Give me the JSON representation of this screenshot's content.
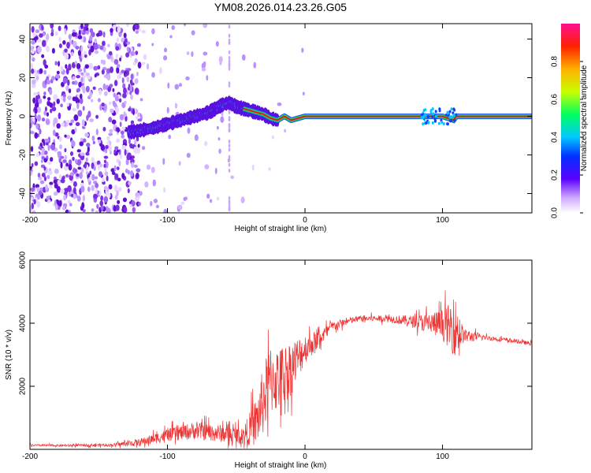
{
  "title": "YM08.2026.014.23.26.G05",
  "colors": {
    "snr_line": "#ee3333",
    "spectrum_noise": "#7b2ee0",
    "track_core": "#e02020",
    "track_edge": "#20d060"
  },
  "colorbar": {
    "label": "Normalized spectral amplitude",
    "ticks": [
      "0.0",
      "0.2",
      "0.4",
      "0.6",
      "0.8"
    ],
    "tick_values": [
      0.0,
      0.2,
      0.4,
      0.6,
      0.8
    ],
    "range": [
      0,
      1
    ]
  },
  "chart_data": [
    {
      "type": "heatmap",
      "title": "YM08.2026.014.23.26.G05",
      "xlabel": "Height of straight line (km)",
      "ylabel": "Frequency (Hz)",
      "xlim": [
        -200,
        165
      ],
      "ylim": [
        -50,
        48
      ],
      "x_ticks": [
        -200,
        -100,
        0,
        100
      ],
      "x_tick_labels": [
        "-200",
        "-100",
        "0",
        "100"
      ],
      "y_ticks": [
        -40,
        -20,
        0,
        20,
        40
      ],
      "y_tick_labels": [
        "-40",
        "-20",
        "0",
        "20",
        "40"
      ],
      "track": {
        "x": [
          -125,
          -110,
          -100,
          -90,
          -80,
          -70,
          -60,
          -55,
          -50,
          -45,
          -40,
          -35,
          -30,
          -25,
          -20,
          -15,
          -10,
          -5,
          0,
          50,
          100,
          108,
          110,
          165
        ],
        "y": [
          -8,
          -6,
          -4,
          -2,
          0,
          2,
          6,
          7,
          5,
          4,
          3,
          2,
          1,
          -1,
          -2,
          0,
          -2,
          -1,
          0,
          0,
          0,
          -2,
          0,
          0
        ]
      },
      "noise_region": {
        "x_min": -200,
        "x_max": -120
      }
    },
    {
      "type": "line",
      "title": "",
      "xlabel": "Height of straight line (km)",
      "ylabel": "SNR (10 * v/v)",
      "xlim": [
        -200,
        165
      ],
      "ylim": [
        0,
        6000
      ],
      "x_ticks": [
        -200,
        -100,
        0,
        100
      ],
      "x_tick_labels": [
        "-200",
        "-100",
        "0",
        "100"
      ],
      "y_ticks": [
        2000,
        4000,
        6000
      ],
      "y_tick_labels": [
        "2000",
        "4000",
        "6000"
      ],
      "series": [
        {
          "name": "SNR",
          "x": [
            -200,
            -180,
            -160,
            -140,
            -120,
            -100,
            -80,
            -60,
            -45,
            -35,
            -30,
            -25,
            -20,
            -10,
            0,
            10,
            20,
            30,
            40,
            60,
            80,
            100,
            110,
            115,
            130,
            150,
            165
          ],
          "y": [
            130,
            120,
            130,
            140,
            220,
            450,
            600,
            500,
            420,
            900,
            1600,
            2200,
            2200,
            2600,
            3200,
            3500,
            3900,
            4050,
            4150,
            4150,
            4050,
            3950,
            3850,
            3600,
            3550,
            3450,
            3350
          ],
          "noise_amplitude": [
            40,
            40,
            50,
            60,
            150,
            250,
            350,
            350,
            350,
            1000,
            1400,
            1400,
            1300,
            1100,
            600,
            350,
            200,
            150,
            120,
            130,
            250,
            600,
            1200,
            300,
            100,
            80,
            80
          ]
        }
      ]
    }
  ]
}
